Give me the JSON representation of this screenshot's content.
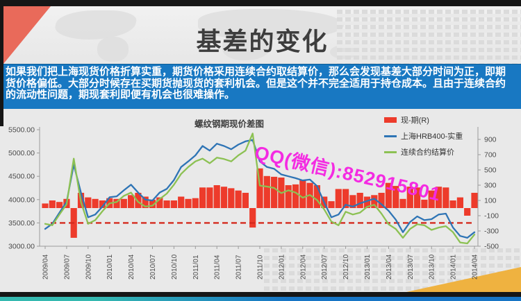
{
  "slide": {
    "title": "基差的变化",
    "body_text": "如果我们把上海现货价格折算实重，期货价格采用连续合约取结算价，那么会发现基差大部分时间为正，即期货价格偏低。大部分时候存在买期货抛现货的套利机会。但是这个并不完全适用于持仓成本。且由于连续合约的流动性问题，期现套利即便有机会也很难操作。",
    "watermark": "QQ(微信):852915801"
  },
  "colors": {
    "band_blue": "#1878c2",
    "bar_red": "#ed3b2b",
    "line_blue": "#2e74b5",
    "line_green": "#8cc153",
    "ref_line_red": "#d42a1e",
    "accent_red_shape": "#e96a5a",
    "accent_yellow": "#efb240",
    "watermark_magenta": "#f42be2",
    "frame_black": "#161616",
    "footer_teal": "#35b9b0",
    "footer_blue": "#1775c5"
  },
  "chart_data": {
    "type": "bar+line combo",
    "title": "螺纹钢期现价差图",
    "x_start": "2009/04",
    "x_interval": "monthly",
    "n_points": 61,
    "x_tick_labels": [
      "2009/04",
      "2009/07",
      "2009/10",
      "2010/01",
      "2010/04",
      "2010/07",
      "2010/10",
      "2011/01",
      "2011/04",
      "2011/07",
      "2011/10",
      "2012/01",
      "2012/04",
      "2012/07",
      "2012/10",
      "2013/01",
      "2013/04",
      "2013/07",
      "2013/10",
      "2014/01",
      "2014/04"
    ],
    "left_axis": {
      "min": 3000,
      "max": 5500,
      "tick_labels": [
        "5500.00",
        "5000.00",
        "4500.00",
        "4000.00",
        "3500.00",
        "3000.00"
      ],
      "tick_values": [
        5500,
        5000,
        4500,
        4000,
        3500,
        3000
      ]
    },
    "right_axis": {
      "min": -500,
      "max": 900,
      "tick_labels": [
        "900",
        "700",
        "500",
        "300",
        "100",
        "-100",
        "-300",
        "-500"
      ],
      "tick_values": [
        900,
        700,
        500,
        300,
        100,
        -100,
        -300,
        -500
      ]
    },
    "series": [
      {
        "name": "现-期(R)",
        "type": "bar",
        "axis": "right",
        "color": "#ed3b2b",
        "values": [
          60,
          100,
          80,
          120,
          -390,
          200,
          140,
          120,
          100,
          130,
          120,
          120,
          170,
          200,
          150,
          110,
          140,
          100,
          100,
          150,
          120,
          130,
          270,
          270,
          300,
          280,
          260,
          230,
          200,
          -255,
          520,
          420,
          410,
          400,
          300,
          310,
          370,
          330,
          300,
          150,
          90,
          250,
          250,
          170,
          200,
          150,
          170,
          200,
          330,
          290,
          120,
          280,
          270,
          110,
          230,
          280,
          270,
          100,
          140,
          -100,
          200
        ]
      },
      {
        "name": "上海HRB400-实重",
        "type": "line",
        "axis": "left",
        "color": "#2e74b5",
        "values": [
          3370,
          3480,
          3720,
          3950,
          4750,
          4150,
          3620,
          3680,
          3850,
          4050,
          4070,
          4200,
          4320,
          4150,
          4000,
          3980,
          4150,
          4230,
          4420,
          4700,
          4820,
          4950,
          5150,
          5050,
          5200,
          5150,
          5080,
          5180,
          5250,
          5280,
          4820,
          4700,
          4660,
          4540,
          4500,
          4460,
          4410,
          4430,
          4290,
          3940,
          3620,
          3680,
          3890,
          3850,
          3920,
          3970,
          4020,
          3900,
          3760,
          3570,
          3300,
          3520,
          3640,
          3560,
          3580,
          3680,
          3700,
          3400,
          3220,
          3180,
          3300
        ]
      },
      {
        "name": "连续合约结算价",
        "type": "line",
        "axis": "left",
        "color": "#8cc153",
        "values": [
          3480,
          3450,
          3680,
          3900,
          4880,
          3950,
          3480,
          3560,
          3750,
          3920,
          3950,
          4080,
          4150,
          3950,
          3850,
          3870,
          4010,
          4130,
          4320,
          4550,
          4700,
          4820,
          4880,
          4780,
          4900,
          4870,
          4820,
          4950,
          5050,
          5420,
          4300,
          4280,
          4250,
          4140,
          4200,
          4150,
          4040,
          4100,
          3990,
          3790,
          3530,
          3450,
          3740,
          3680,
          3720,
          3845,
          3890,
          3700,
          3470,
          3370,
          3180,
          3370,
          3470,
          3450,
          3350,
          3400,
          3430,
          3300,
          3080,
          3060,
          3250
        ]
      }
    ],
    "reference_line": {
      "axis": "left",
      "value": 3500,
      "style": "dashed",
      "color": "#d42a1e"
    },
    "legend_position": "top-right",
    "grid": false
  }
}
